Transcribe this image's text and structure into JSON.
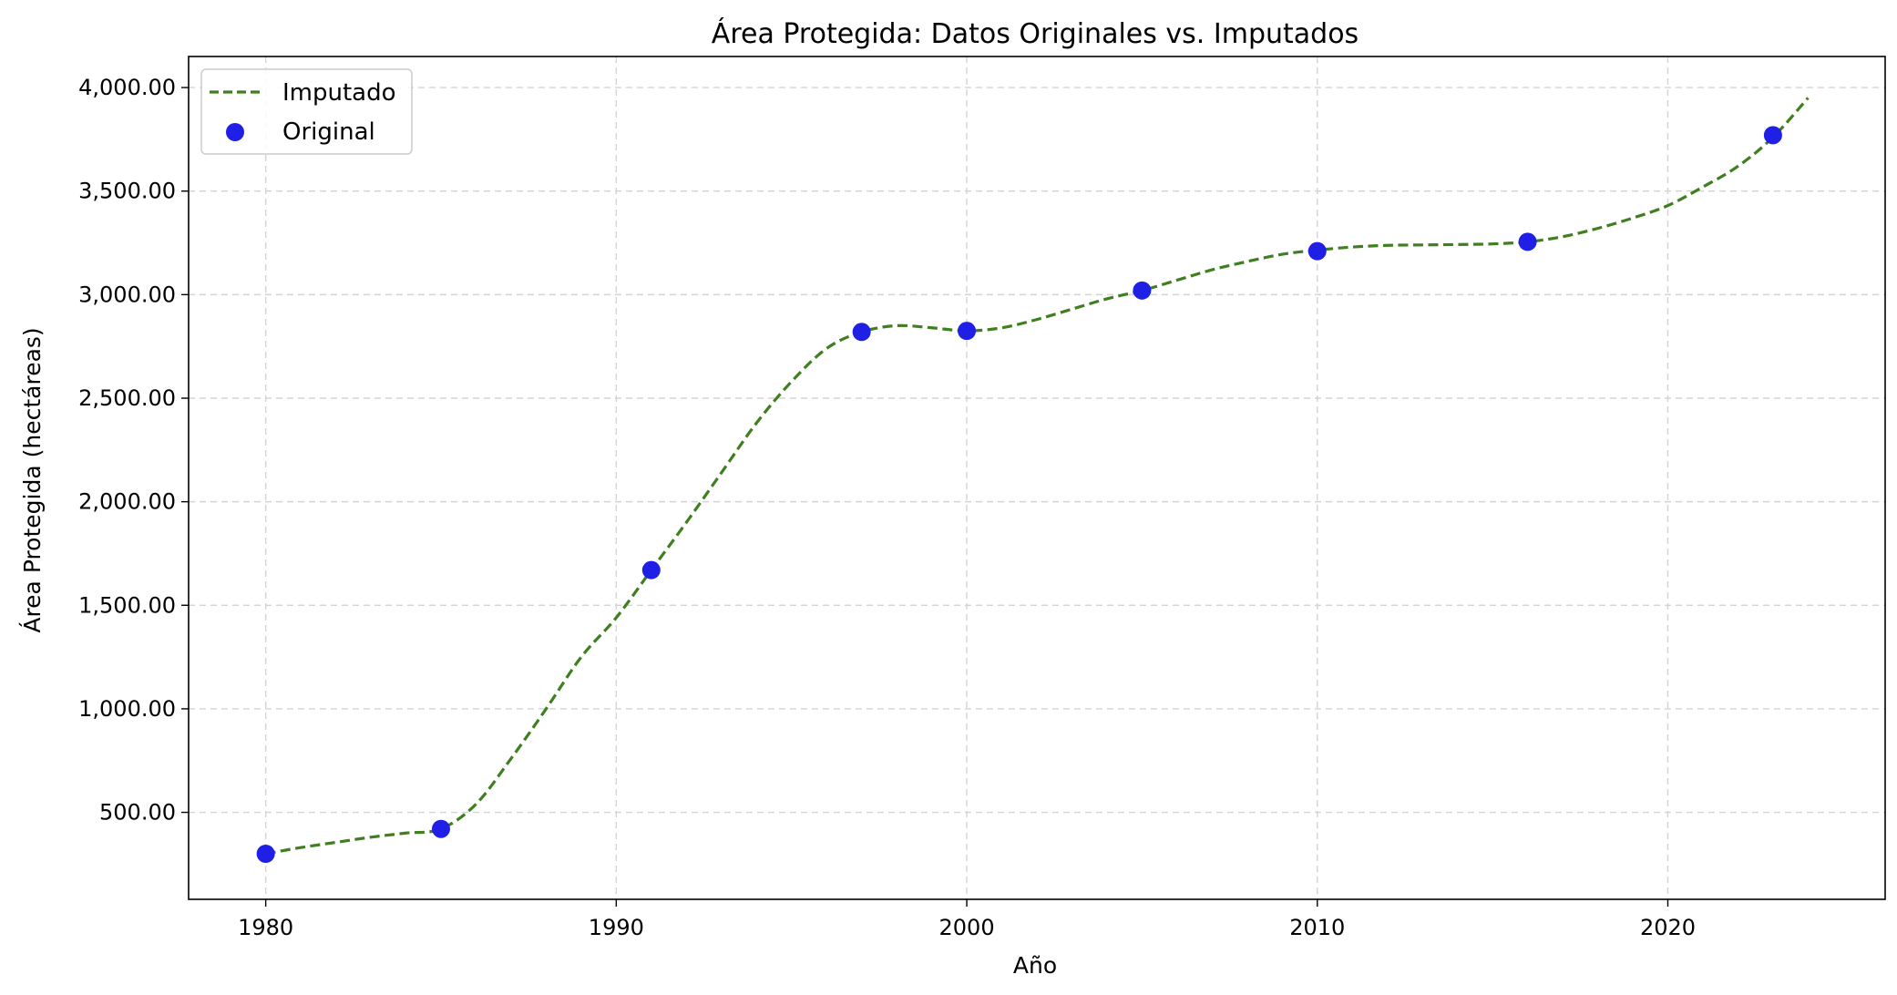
{
  "chart_data": {
    "type": "line",
    "title": "Área Protegida: Datos Originales vs. Imputados",
    "xlabel": "Año",
    "ylabel": "Área Protegida (hectáreas)",
    "xlim": [
      1977.8,
      2026.2
    ],
    "ylim": [
      80,
      4150
    ],
    "xticks": [
      1980,
      1990,
      2000,
      2010,
      2020
    ],
    "xtick_labels": [
      "1980",
      "1990",
      "2000",
      "2010",
      "2020"
    ],
    "yticks": [
      500,
      1000,
      1500,
      2000,
      2500,
      3000,
      3500,
      4000
    ],
    "ytick_labels": [
      "500.00",
      "1,000.00",
      "1,500.00",
      "2,000.00",
      "2,500.00",
      "3,000.00",
      "3,500.00",
      "4,000.00"
    ],
    "grid": true,
    "legend_position": "top-left",
    "series": [
      {
        "name": "Imputado",
        "kind": "line",
        "style": "dashed",
        "color": "#3f7f1f",
        "x": [
          1980,
          1981,
          1982,
          1983,
          1984,
          1985,
          1986,
          1987,
          1988,
          1989,
          1990,
          1991,
          1992,
          1993,
          1994,
          1995,
          1996,
          1997,
          1998,
          1999,
          2000,
          2001,
          2002,
          2003,
          2004,
          2005,
          2006,
          2007,
          2008,
          2009,
          2010,
          2011,
          2012,
          2013,
          2014,
          2015,
          2016,
          2017,
          2018,
          2019,
          2020,
          2021,
          2022,
          2023,
          2024
        ],
        "y": [
          300,
          330,
          355,
          380,
          400,
          420,
          540,
          760,
          1000,
          1250,
          1440,
          1670,
          1900,
          2140,
          2380,
          2580,
          2740,
          2820,
          2850,
          2840,
          2825,
          2840,
          2880,
          2930,
          2980,
          3020,
          3070,
          3120,
          3160,
          3195,
          3215,
          3230,
          3238,
          3240,
          3242,
          3245,
          3255,
          3280,
          3320,
          3370,
          3430,
          3520,
          3620,
          3760,
          3950
        ]
      },
      {
        "name": "Original",
        "kind": "scatter",
        "color": "#1f1fe6",
        "x": [
          1980,
          1985,
          1991,
          1997,
          2000,
          2005,
          2010,
          2016,
          2023
        ],
        "y": [
          300,
          420,
          1670,
          2820,
          2825,
          3020,
          3210,
          3255,
          3770
        ]
      }
    ]
  }
}
